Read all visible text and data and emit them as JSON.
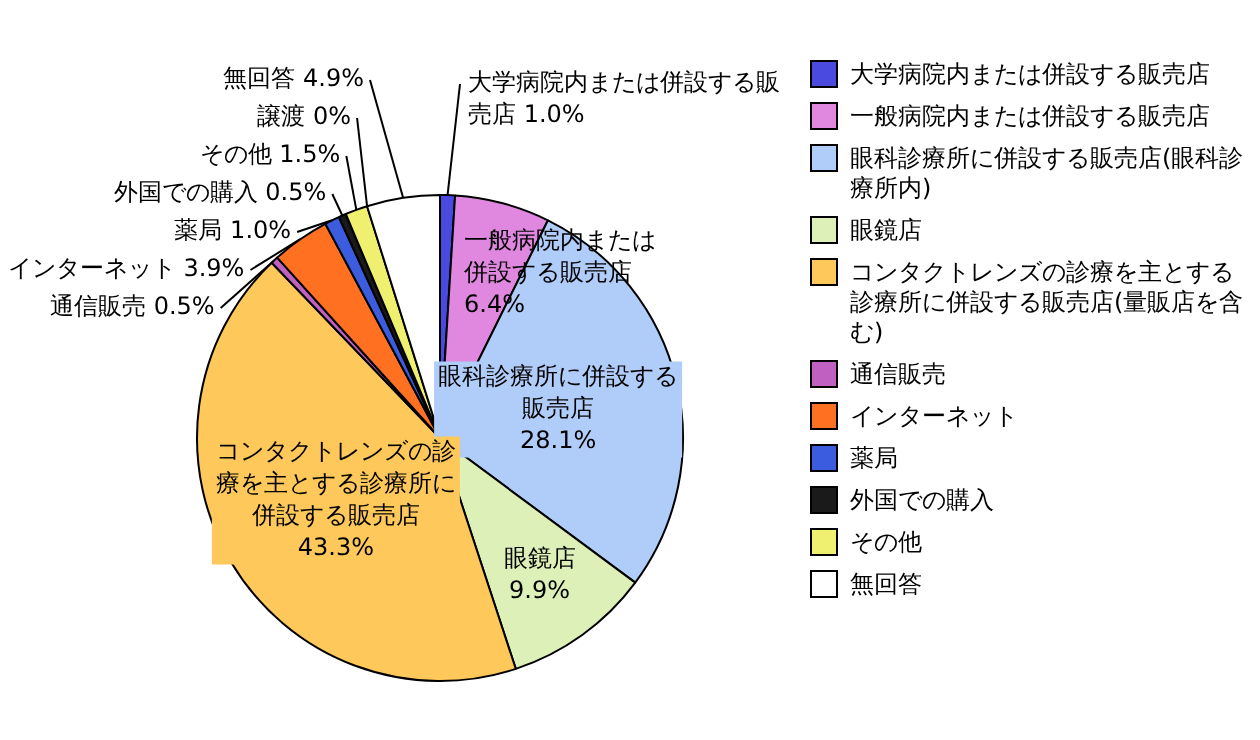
{
  "chart_data": {
    "type": "pie",
    "categories": [
      "大学病院内または併設する販売店",
      "一般病院内または併設する販売店",
      "眼科診療所に併設する販売店(眼科診療所内)",
      "眼鏡店",
      "コンタクトレンズの診療を主とする診療所に併設する販売店(量販店を含む)",
      "通信販売",
      "インターネット",
      "薬局",
      "外国での購入",
      "その他",
      "譲渡",
      "無回答"
    ],
    "values": [
      1.0,
      6.4,
      28.1,
      9.9,
      43.3,
      0.5,
      3.9,
      1.0,
      0.5,
      1.5,
      0,
      4.9
    ],
    "value_labels": [
      "1.0%",
      "6.4%",
      "28.1%",
      "9.9%",
      "43.3%",
      "0.5%",
      "3.9%",
      "1.0%",
      "0.5%",
      "1.5%",
      "0%",
      "4.9%"
    ],
    "colors": [
      "#4a4ae0",
      "#e088e0",
      "#b0ccf8",
      "#dcf0b8",
      "#ffc85a",
      "#c060c0",
      "#ff7020",
      "#3c5ce0",
      "#1a1a1a",
      "#f0f070",
      "#ffffff",
      "#ffffff"
    ],
    "annotations": [
      null,
      null,
      "眼科診療所に併設する販売店",
      null,
      "コンタクトレンズの診療を主とする診療所に併設する販売店",
      null,
      null,
      null,
      null,
      null,
      null,
      null
    ],
    "legend": "right"
  }
}
